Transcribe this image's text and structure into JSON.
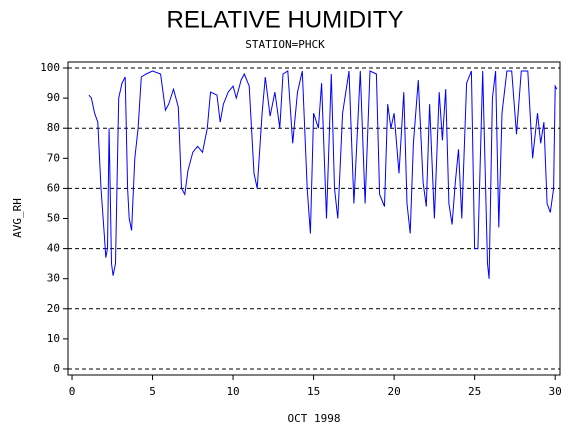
{
  "chart_data": {
    "type": "line",
    "title": "RELATIVE HUMIDITY",
    "subtitle": "STATION=PHCK",
    "ylabel": "AVG_RH",
    "xlabel": "OCT 1998",
    "xlim": [
      -0.25,
      30.3
    ],
    "ylim": [
      -2,
      102
    ],
    "xticks": [
      0,
      5,
      10,
      15,
      20,
      25,
      30
    ],
    "yticks": [
      0,
      10,
      20,
      30,
      40,
      50,
      60,
      70,
      80,
      90,
      100
    ],
    "ygrid": [
      0,
      20,
      40,
      60,
      80,
      100
    ],
    "grid": true,
    "series": [
      {
        "name": "AVG_RH",
        "color": "#0000ff",
        "x": [
          1.05,
          1.2,
          1.4,
          1.6,
          1.8,
          2.0,
          2.1,
          2.2,
          2.3,
          2.45,
          2.55,
          2.7,
          2.9,
          3.1,
          3.3,
          3.45,
          3.55,
          3.7,
          3.9,
          4.1,
          4.3,
          4.6,
          5.0,
          5.5,
          5.8,
          6.0,
          6.3,
          6.6,
          6.8,
          7.0,
          7.2,
          7.5,
          7.8,
          8.1,
          8.4,
          8.6,
          9.0,
          9.2,
          9.4,
          9.7,
          10.0,
          10.2,
          10.5,
          10.7,
          11.0,
          11.3,
          11.5,
          11.8,
          12.0,
          12.3,
          12.6,
          12.9,
          13.1,
          13.4,
          13.7,
          14.0,
          14.3,
          14.6,
          14.8,
          15.0,
          15.3,
          15.5,
          15.8,
          16.1,
          16.3,
          16.5,
          16.8,
          17.2,
          17.5,
          17.9,
          18.2,
          18.5,
          18.9,
          19.1,
          19.4,
          19.6,
          19.8,
          20.0,
          20.3,
          20.6,
          20.8,
          21.0,
          21.2,
          21.5,
          21.8,
          22.0,
          22.2,
          22.5,
          22.8,
          23.0,
          23.2,
          23.4,
          23.6,
          23.8,
          24.0,
          24.2,
          24.5,
          24.8,
          25.0,
          25.2,
          25.5,
          25.8,
          25.9,
          26.1,
          26.3,
          26.5,
          26.7,
          27.0,
          27.3,
          27.6,
          27.9,
          28.3,
          28.6,
          28.9,
          29.1,
          29.3,
          29.5,
          29.7,
          29.9,
          30.0,
          30.1
        ],
        "values": [
          91,
          90,
          85,
          82,
          60,
          45,
          37,
          40,
          80,
          35,
          31,
          35,
          90,
          95,
          97,
          60,
          50,
          46,
          70,
          80,
          97,
          98,
          99,
          98,
          86,
          88,
          93,
          87,
          60,
          58,
          66,
          72,
          74,
          72,
          80,
          92,
          91,
          82,
          88,
          92,
          94,
          90,
          96,
          98,
          94,
          65,
          60,
          85,
          97,
          84,
          92,
          80,
          98,
          99,
          75,
          92,
          99,
          60,
          45,
          85,
          80,
          95,
          50,
          98,
          60,
          50,
          85,
          99,
          55,
          99,
          55,
          99,
          98,
          58,
          54,
          88,
          80,
          85,
          65,
          92,
          55,
          45,
          75,
          96,
          62,
          54,
          88,
          50,
          92,
          76,
          93,
          55,
          48,
          62,
          73,
          50,
          95,
          99,
          40,
          40,
          99,
          35,
          30,
          90,
          99,
          47,
          85,
          99,
          99,
          78,
          99,
          99,
          70,
          85,
          75,
          82,
          55,
          52,
          60,
          94,
          93
        ]
      }
    ]
  }
}
